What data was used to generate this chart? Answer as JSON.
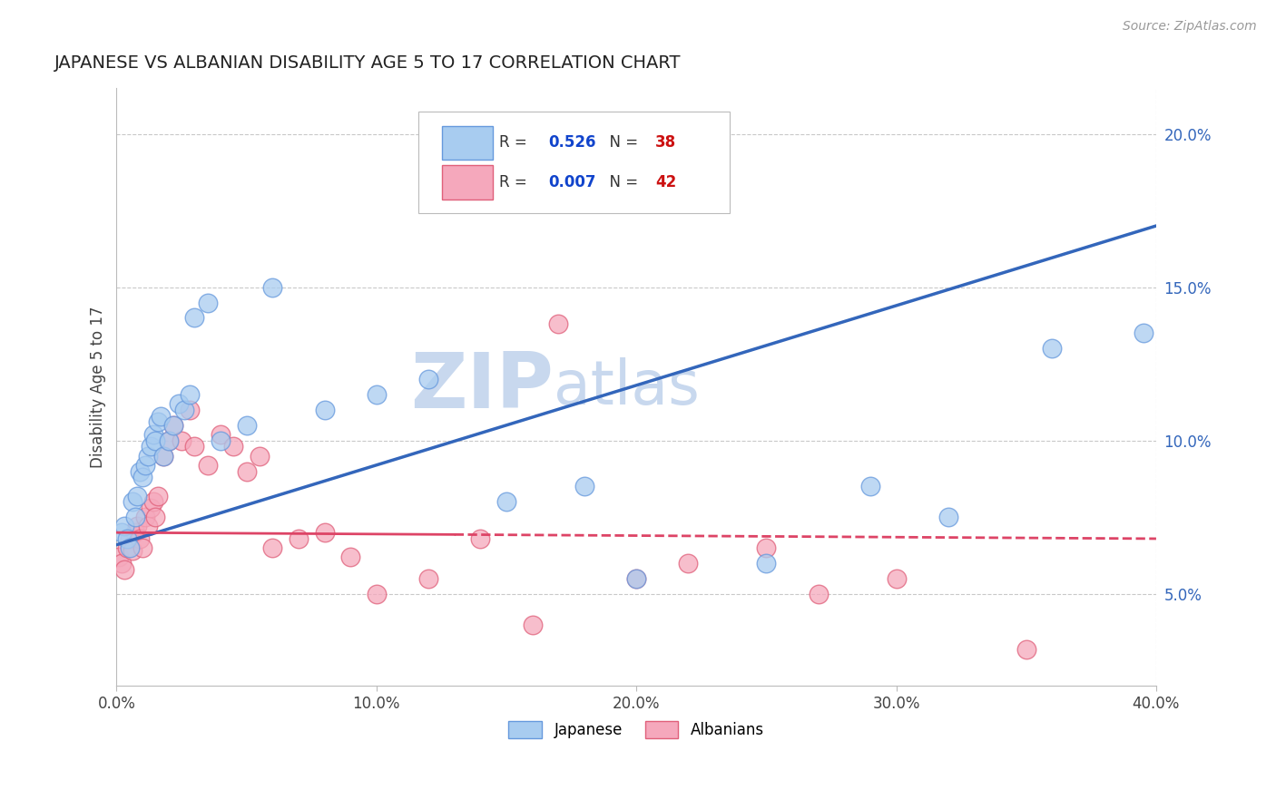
{
  "title": "JAPANESE VS ALBANIAN DISABILITY AGE 5 TO 17 CORRELATION CHART",
  "source_text": "Source: ZipAtlas.com",
  "ylabel": "Disability Age 5 to 17",
  "xlim": [
    0.0,
    0.4
  ],
  "ylim": [
    0.02,
    0.215
  ],
  "xticks": [
    0.0,
    0.1,
    0.2,
    0.3,
    0.4
  ],
  "xtick_labels": [
    "0.0%",
    "10.0%",
    "20.0%",
    "30.0%",
    "40.0%"
  ],
  "yticks_right": [
    0.05,
    0.1,
    0.15,
    0.2
  ],
  "ytick_labels_right": [
    "5.0%",
    "10.0%",
    "15.0%",
    "20.0%"
  ],
  "japanese_r": "0.526",
  "japanese_n": "38",
  "albanian_r": "0.007",
  "albanian_n": "42",
  "japanese_color": "#A8CCF0",
  "albanian_color": "#F5A8BC",
  "japanese_edge_color": "#6699DD",
  "albanian_edge_color": "#E0607A",
  "japanese_line_color": "#3366BB",
  "albanian_line_color": "#DD4466",
  "grid_color": "#BBBBBB",
  "watermark_color": "#C8D8EE",
  "watermark_text": "ZIPatlas",
  "legend_r_color": "#1144CC",
  "legend_n_color": "#CC1111",
  "japanese_x": [
    0.002,
    0.003,
    0.004,
    0.005,
    0.006,
    0.007,
    0.008,
    0.009,
    0.01,
    0.011,
    0.012,
    0.013,
    0.014,
    0.015,
    0.016,
    0.017,
    0.018,
    0.02,
    0.022,
    0.024,
    0.026,
    0.028,
    0.03,
    0.035,
    0.04,
    0.05,
    0.06,
    0.08,
    0.1,
    0.12,
    0.15,
    0.18,
    0.2,
    0.25,
    0.29,
    0.32,
    0.36,
    0.395
  ],
  "japanese_y": [
    0.07,
    0.072,
    0.068,
    0.065,
    0.08,
    0.075,
    0.082,
    0.09,
    0.088,
    0.092,
    0.095,
    0.098,
    0.102,
    0.1,
    0.106,
    0.108,
    0.095,
    0.1,
    0.105,
    0.112,
    0.11,
    0.115,
    0.14,
    0.145,
    0.1,
    0.105,
    0.15,
    0.11,
    0.115,
    0.12,
    0.08,
    0.085,
    0.055,
    0.06,
    0.085,
    0.075,
    0.13,
    0.135
  ],
  "albanian_x": [
    0.001,
    0.002,
    0.003,
    0.004,
    0.005,
    0.006,
    0.007,
    0.008,
    0.009,
    0.01,
    0.011,
    0.012,
    0.013,
    0.014,
    0.015,
    0.016,
    0.018,
    0.02,
    0.022,
    0.025,
    0.028,
    0.03,
    0.035,
    0.04,
    0.045,
    0.05,
    0.055,
    0.06,
    0.07,
    0.08,
    0.09,
    0.1,
    0.12,
    0.14,
    0.16,
    0.17,
    0.2,
    0.22,
    0.25,
    0.27,
    0.3,
    0.35
  ],
  "albanian_y": [
    0.062,
    0.06,
    0.058,
    0.065,
    0.068,
    0.064,
    0.07,
    0.072,
    0.068,
    0.065,
    0.075,
    0.072,
    0.078,
    0.08,
    0.075,
    0.082,
    0.095,
    0.1,
    0.105,
    0.1,
    0.11,
    0.098,
    0.092,
    0.102,
    0.098,
    0.09,
    0.095,
    0.065,
    0.068,
    0.07,
    0.062,
    0.05,
    0.055,
    0.068,
    0.04,
    0.138,
    0.055,
    0.06,
    0.065,
    0.05,
    0.055,
    0.032
  ],
  "trend_line_x_start": 0.0,
  "trend_line_x_end": 0.4,
  "japanese_trend_y_start": 0.066,
  "japanese_trend_y_end": 0.17,
  "albanian_trend_y_start": 0.07,
  "albanian_trend_y_end": 0.068
}
